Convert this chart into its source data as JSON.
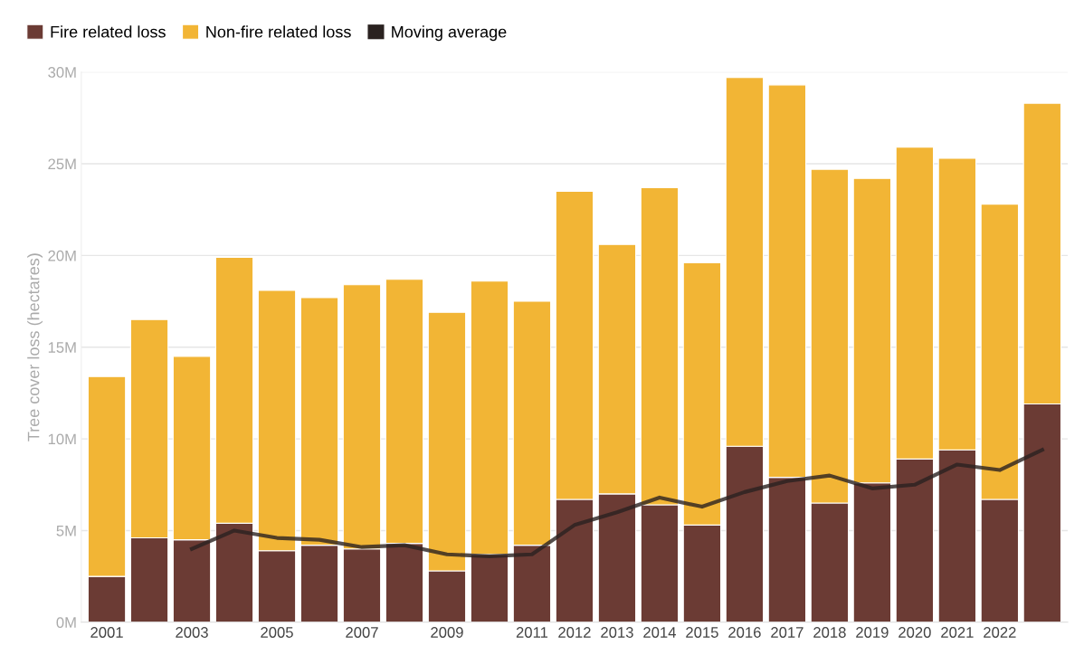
{
  "chart_data": {
    "type": "bar",
    "stacked": true,
    "ylabel": "Tree cover loss (hectares)",
    "categories": [
      "2001",
      null,
      "2003",
      null,
      "2005",
      null,
      "2007",
      null,
      "2009",
      null,
      "2011",
      "2012",
      "2013",
      "2014",
      "2015",
      "2016",
      "2017",
      "2018",
      "2019",
      "2020",
      "2021",
      "2022",
      null
    ],
    "series": [
      {
        "name": "Fire related loss",
        "color": "#6b3b34",
        "values": [
          2.5,
          4.6,
          4.5,
          5.4,
          3.9,
          4.2,
          4.0,
          4.3,
          2.8,
          3.7,
          4.2,
          6.7,
          7.0,
          6.4,
          5.3,
          9.6,
          7.9,
          6.5,
          7.6,
          8.9,
          9.4,
          6.7,
          11.9
        ]
      },
      {
        "name": "Non-fire related loss",
        "color": "#f2b535",
        "values": [
          10.9,
          11.9,
          10.0,
          14.5,
          14.2,
          13.5,
          14.4,
          14.4,
          14.1,
          14.9,
          13.3,
          16.8,
          13.6,
          17.3,
          14.3,
          20.1,
          21.4,
          18.2,
          16.6,
          17.0,
          15.9,
          16.1,
          16.4
        ]
      },
      {
        "name": "Moving average",
        "color": "#2a2220",
        "type": "line",
        "values": [
          null,
          null,
          4.0,
          5.0,
          4.6,
          4.5,
          4.1,
          4.2,
          3.7,
          3.6,
          3.7,
          5.3,
          6.0,
          6.8,
          6.3,
          7.1,
          7.7,
          8.0,
          7.3,
          7.5,
          8.6,
          8.3,
          9.4
        ]
      }
    ],
    "ylim": [
      0,
      30
    ],
    "yticks": [
      {
        "value": 0,
        "label": "0M"
      },
      {
        "value": 5,
        "label": "5M"
      },
      {
        "value": 10,
        "label": "10M"
      },
      {
        "value": 15,
        "label": "15M"
      },
      {
        "value": 20,
        "label": "20M"
      },
      {
        "value": 25,
        "label": "25M"
      },
      {
        "value": 30,
        "label": "30M"
      }
    ],
    "grid": "y",
    "legend": "top left",
    "line_style": "solid",
    "marker": "none"
  }
}
